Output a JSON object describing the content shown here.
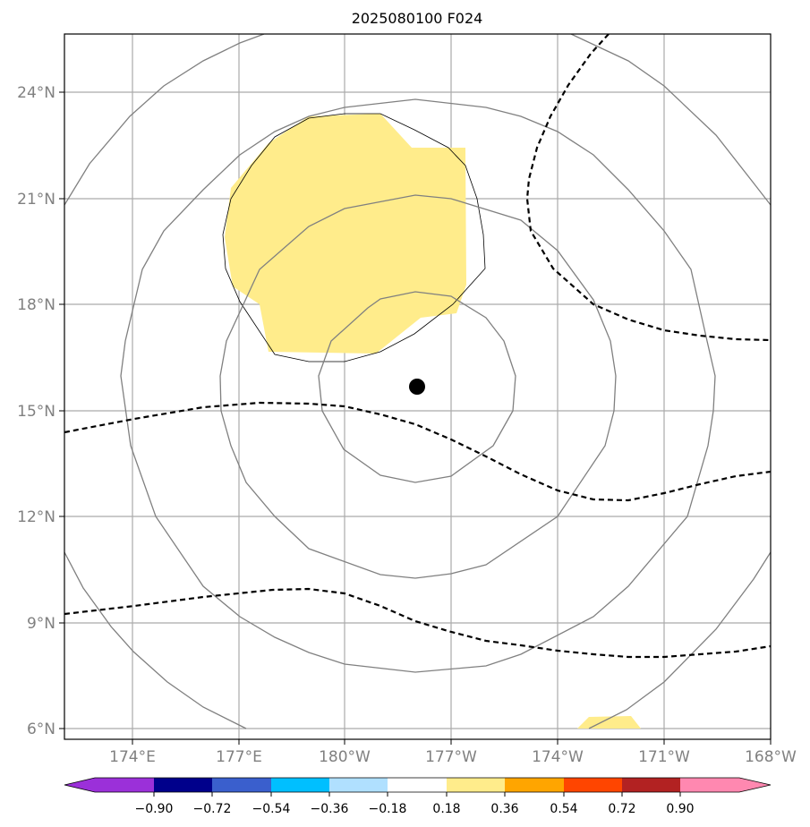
{
  "title": "2025080100 F024",
  "map": {
    "lon_labels": [
      "174°E",
      "177°E",
      "180°W",
      "177°W",
      "174°W",
      "171°W",
      "168°W"
    ],
    "lat_labels": [
      "24°N",
      "21°N",
      "18°N",
      "15°N",
      "12°N",
      "9°N",
      "6°N"
    ],
    "center_marker": {
      "lon": -177.9,
      "lat": 15.7
    }
  },
  "colorbar": {
    "ticks": [
      "−0.90",
      "−0.72",
      "−0.54",
      "−0.36",
      "−0.18",
      "0.18",
      "0.36",
      "0.54",
      "0.72",
      "0.90"
    ],
    "colors": [
      "#9b30d9",
      "#00008b",
      "#3a5fcd",
      "#00bfff",
      "#b0e0ff",
      "#ffffff",
      "#ffec8b",
      "#ffa500",
      "#ff4500",
      "#b22222",
      "#ff88b0"
    ]
  }
}
